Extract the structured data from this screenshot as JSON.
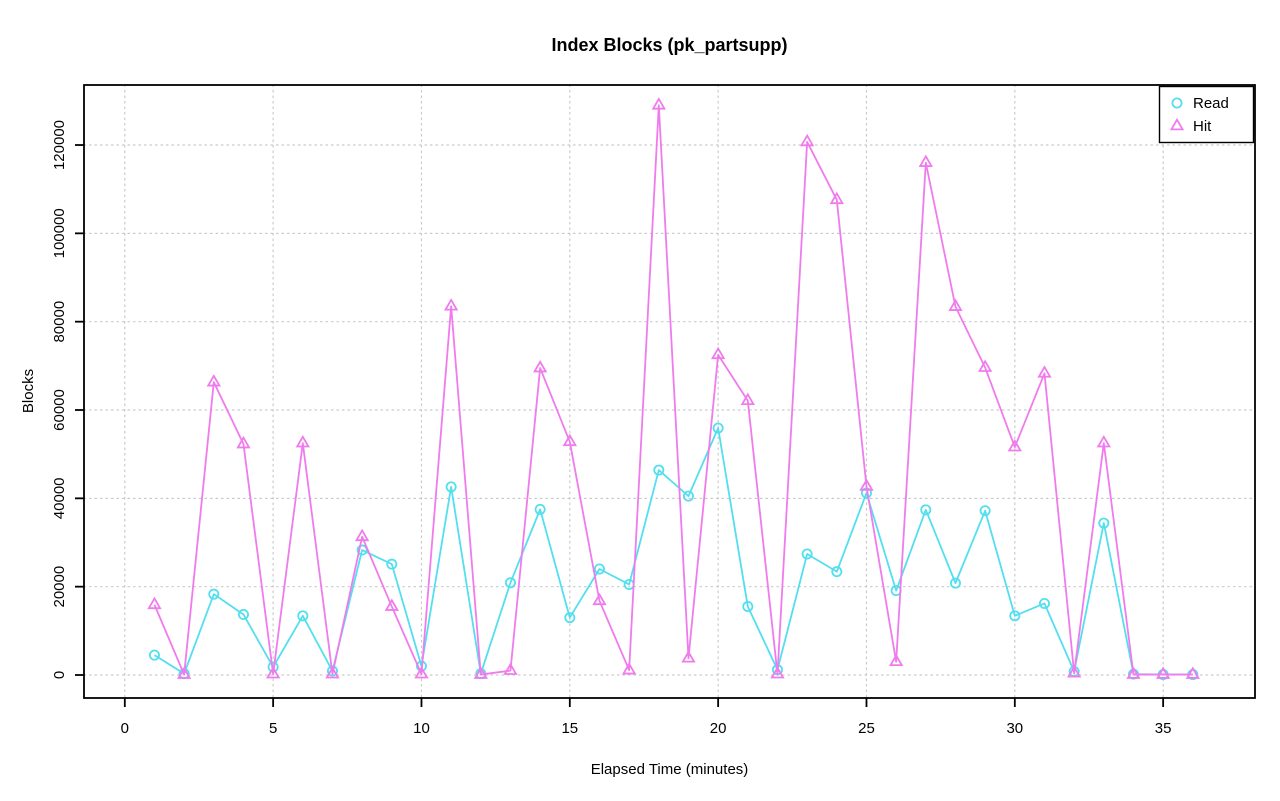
{
  "title": "Index Blocks (pk_partsupp)",
  "x_axis_label": "Elapsed Time (minutes)",
  "y_axis_label": "Blocks",
  "colors": {
    "read": "#53DFEF",
    "hit": "#F07BEC",
    "grid": "#C9C9C9",
    "axis": "#000000",
    "background": "#FFFFFF"
  },
  "legend": {
    "position": "top-right",
    "items": [
      {
        "label": "Read",
        "marker": "circle-icon"
      },
      {
        "label": "Hit",
        "marker": "triangle-icon"
      }
    ]
  },
  "chart_data": {
    "type": "line",
    "title": "Index Blocks (pk_partsupp)",
    "xlabel": "Elapsed Time (minutes)",
    "ylabel": "Blocks",
    "grid": true,
    "legend_position": "top-right",
    "x_ticks": [
      0,
      5,
      10,
      15,
      20,
      25,
      30,
      35
    ],
    "y_ticks": [
      0,
      20000,
      40000,
      60000,
      80000,
      100000,
      120000
    ],
    "xlim": [
      -1.4,
      38.1
    ],
    "ylim": [
      -5200,
      133600
    ],
    "x": [
      1,
      2,
      3,
      4,
      5,
      6,
      7,
      8,
      9,
      10,
      11,
      12,
      13,
      14,
      15,
      16,
      17,
      18,
      19,
      20,
      21,
      22,
      23,
      24,
      25,
      26,
      27,
      28,
      29,
      30,
      31,
      32,
      33,
      34,
      35,
      36
    ],
    "series": [
      {
        "name": "Read",
        "marker": "circle",
        "color": "#53DFEF",
        "values": [
          4500,
          300,
          18300,
          13700,
          1800,
          13400,
          900,
          28300,
          25100,
          2000,
          42600,
          300,
          20900,
          37500,
          13000,
          24000,
          20500,
          46400,
          40500,
          55900,
          15500,
          1200,
          27400,
          23400,
          41200,
          19100,
          37400,
          20800,
          37200,
          13400,
          16200,
          800,
          34400,
          200,
          100,
          100
        ]
      },
      {
        "name": "Hit",
        "marker": "triangle",
        "color": "#F07BEC",
        "values": [
          15900,
          100,
          66300,
          52300,
          200,
          52500,
          200,
          31300,
          15500,
          200,
          83500,
          100,
          1000,
          69500,
          52800,
          16800,
          1100,
          129000,
          3800,
          72500,
          62100,
          200,
          120700,
          107600,
          42700,
          3000,
          116000,
          83400,
          69600,
          51600,
          68300,
          400,
          52500,
          100,
          100,
          100
        ]
      }
    ]
  }
}
